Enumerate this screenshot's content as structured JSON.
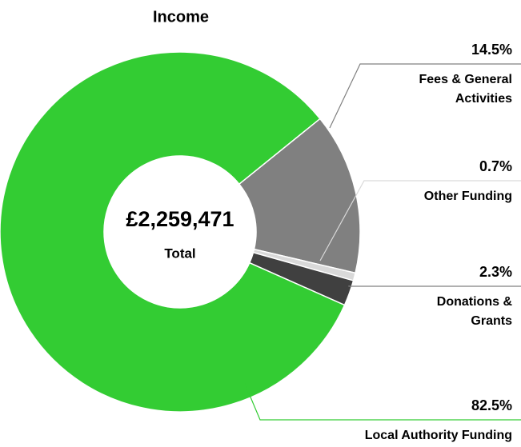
{
  "chart_data": {
    "type": "donut",
    "title": "Income",
    "categories": [
      "Fees & General Activities",
      "Other Funding",
      "Donations & Grants",
      "Local Authority Funding"
    ],
    "values": [
      14.5,
      0.7,
      2.3,
      82.5
    ],
    "value_labels": [
      "14.5%",
      "0.7%",
      "2.3%",
      "82.5%"
    ],
    "colors": [
      "#808080",
      "#d9d9d9",
      "#404040",
      "#33cc33"
    ],
    "center_value": "£2,259,471",
    "center_label": "Total"
  }
}
